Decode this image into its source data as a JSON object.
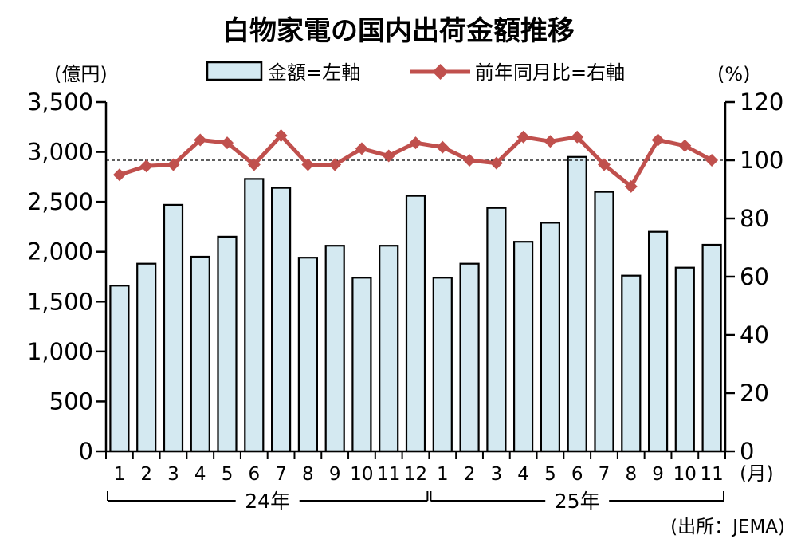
{
  "chart_data": {
    "type": "bar",
    "title": "白物家電の国内出荷金額推移",
    "ylabel": "(億円)",
    "y2label": "(%)",
    "xunit": "(月)",
    "source": "(出所：JEMA)",
    "categories": [
      "1",
      "2",
      "3",
      "4",
      "5",
      "6",
      "7",
      "8",
      "9",
      "10",
      "11",
      "12",
      "1",
      "2",
      "3",
      "4",
      "5",
      "6",
      "7",
      "8",
      "9",
      "10",
      "11"
    ],
    "year_groups": [
      {
        "label": "24年",
        "months": 12
      },
      {
        "label": "25年",
        "months": 11
      }
    ],
    "series": [
      {
        "name": "金額=左軸",
        "type": "bar",
        "axis": "left",
        "color": "#d4e9f1",
        "values": [
          1660,
          1880,
          2470,
          1950,
          2150,
          2730,
          2640,
          1940,
          2060,
          1740,
          2060,
          2560,
          1740,
          1880,
          2440,
          2100,
          2290,
          2950,
          2600,
          1760,
          2200,
          1840,
          2070
        ]
      },
      {
        "name": "前年同月比=右軸",
        "type": "line",
        "axis": "right",
        "color": "#c0504d",
        "values": [
          95,
          98,
          98.5,
          107,
          106,
          98.5,
          108.5,
          98.5,
          98.5,
          104,
          101.5,
          106,
          104.5,
          100,
          99,
          108,
          106.5,
          108,
          98.5,
          91,
          107,
          105,
          100
        ]
      }
    ],
    "ylim": [
      0,
      3500
    ],
    "yticks": [
      "0",
      "500",
      "1,000",
      "1,500",
      "2,000",
      "2,500",
      "3,000",
      "3,500"
    ],
    "y2lim": [
      0,
      120
    ],
    "y2ticks": [
      "0",
      "20",
      "40",
      "60",
      "80",
      "100",
      "120"
    ],
    "reference_line": 100,
    "grid": false,
    "legend_position": "top"
  }
}
